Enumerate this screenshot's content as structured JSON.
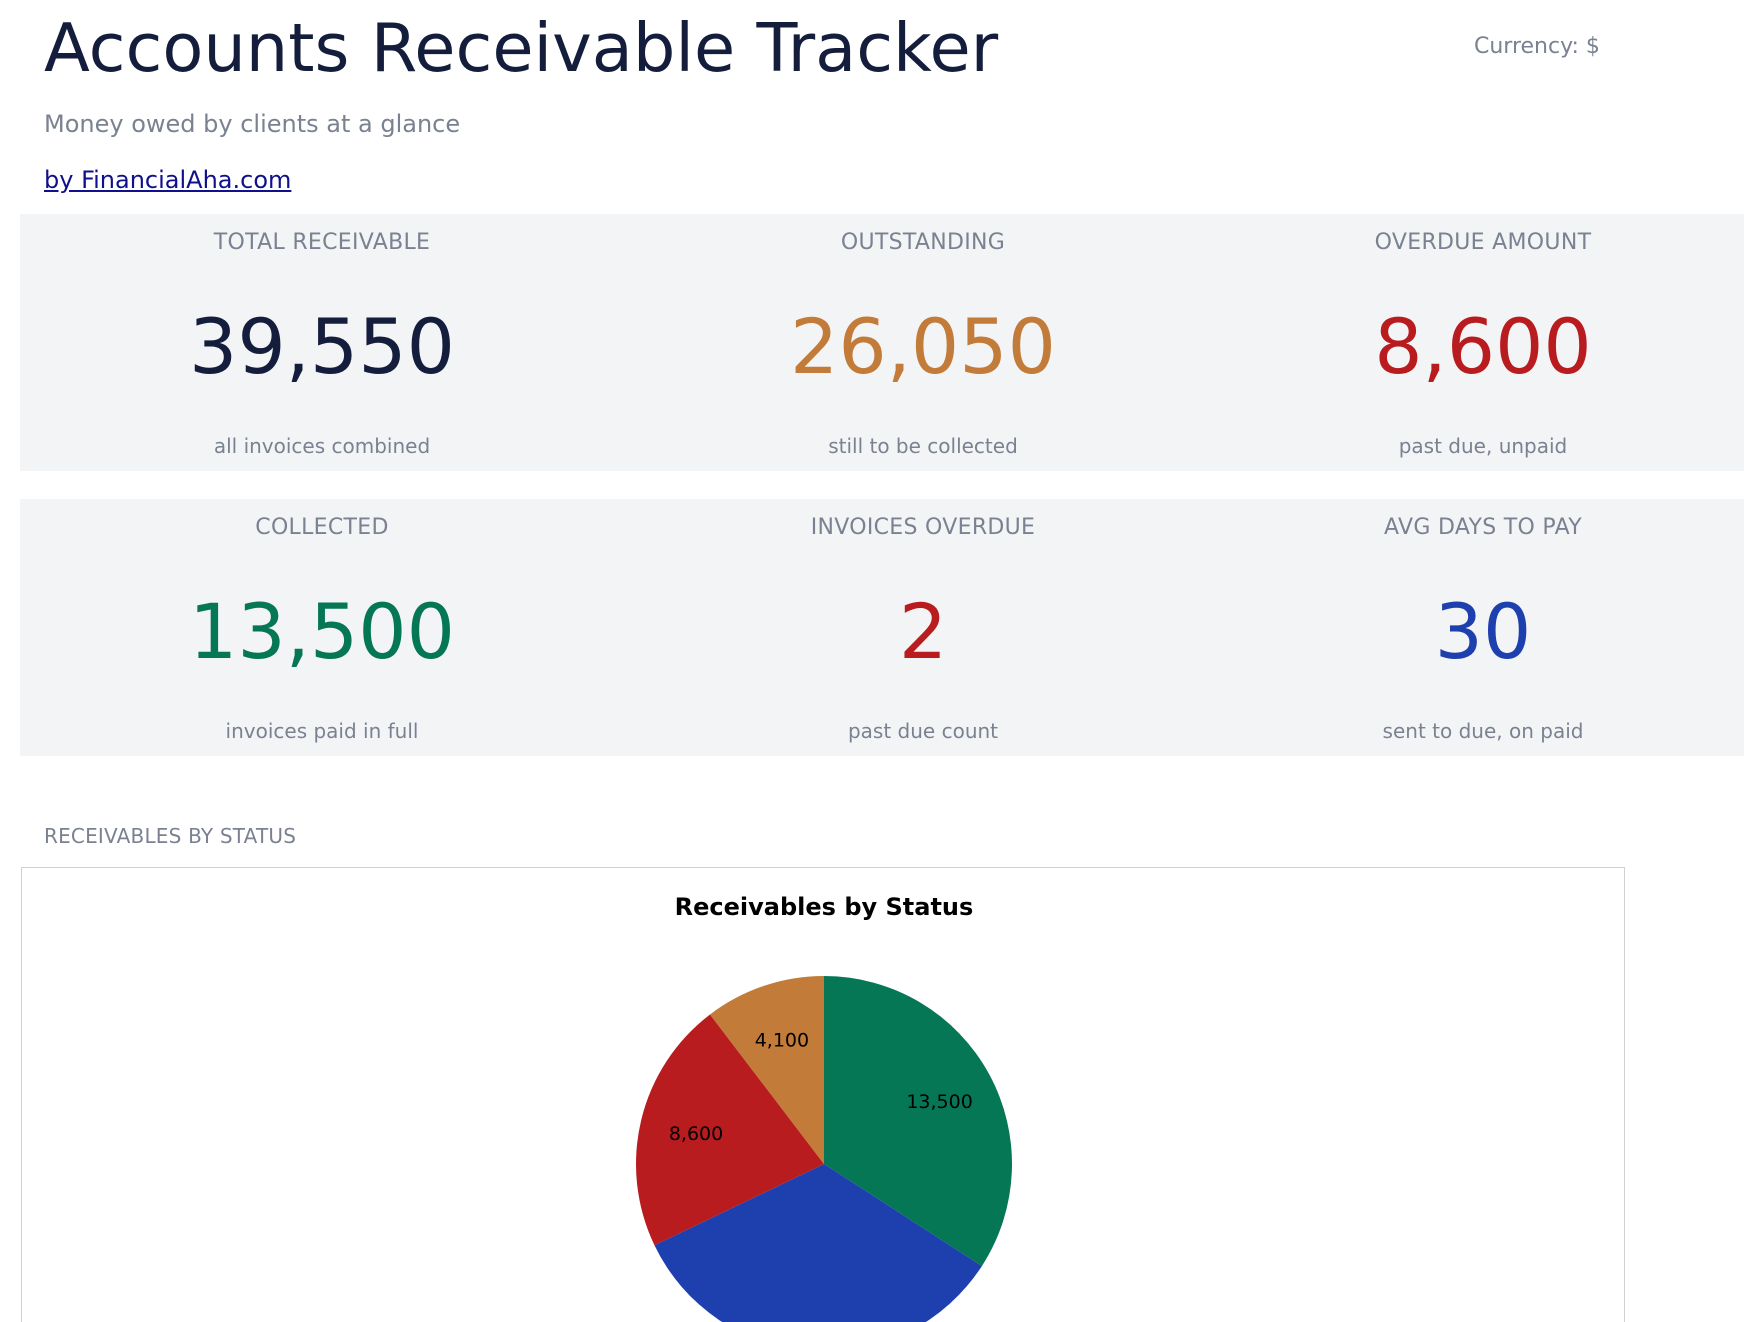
{
  "header": {
    "title": "Accounts Receivable Tracker",
    "currency": "Currency: $",
    "subtitle": "Money owed by clients at a glance",
    "brand_link": "by FinancialAha.com"
  },
  "kpis": {
    "total_receivable": {
      "label": "TOTAL RECEIVABLE",
      "value": "39,550",
      "note": "all invoices combined",
      "color": "#141e3c"
    },
    "outstanding": {
      "label": "OUTSTANDING",
      "value": "26,050",
      "note": "still to be collected",
      "color": "#c27b38"
    },
    "overdue_amount": {
      "label": "OVERDUE AMOUNT",
      "value": "8,600",
      "note": "past due, unpaid",
      "color": "#b81c1e"
    },
    "collected": {
      "label": "COLLECTED",
      "value": "13,500",
      "note": "invoices paid in full",
      "color": "#067755"
    },
    "invoices_overdue": {
      "label": "INVOICES OVERDUE",
      "value": "2",
      "note": "past due count",
      "color": "#b81c1e"
    },
    "avg_days_to_pay": {
      "label": "AVG DAYS TO PAY",
      "value": "30",
      "note": "sent to due, on paid",
      "color": "#1e3fae"
    }
  },
  "section": {
    "label": "RECEIVABLES BY STATUS"
  },
  "chart_data": {
    "type": "pie",
    "title": "Receivables by Status",
    "start_angle_deg": 90,
    "direction": "clockwise",
    "slices": [
      {
        "value": 13500,
        "label": "13,500",
        "color": "#067755"
      },
      {
        "value": 13350,
        "label": "",
        "color": "#1e3fae"
      },
      {
        "value": 8600,
        "label": "8,600",
        "color": "#b81c1e"
      },
      {
        "value": 4100,
        "label": "4,100",
        "color": "#c27b38"
      }
    ]
  }
}
